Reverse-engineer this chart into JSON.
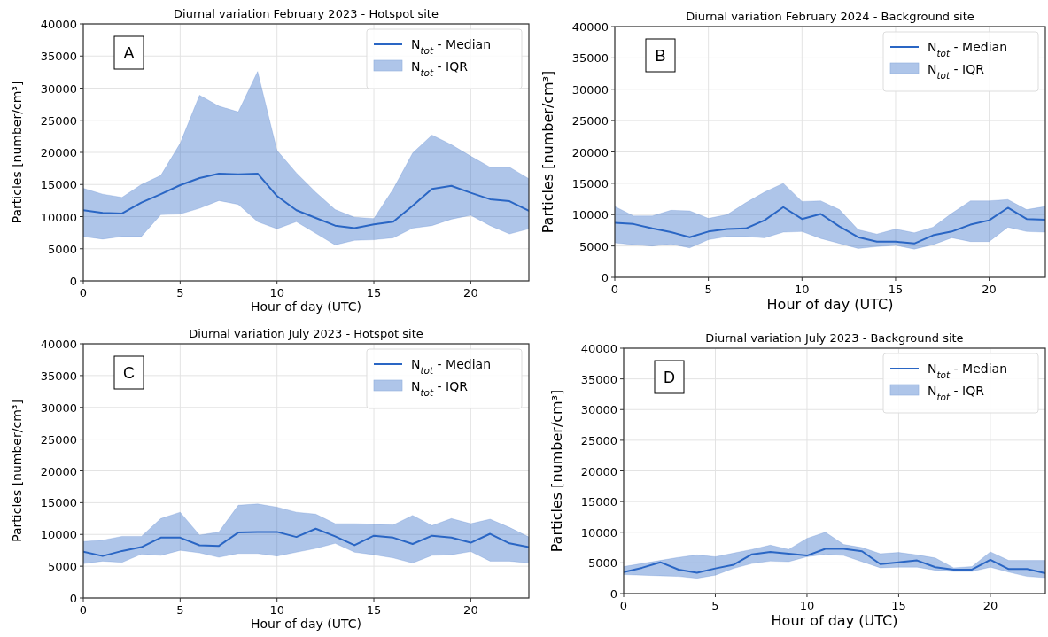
{
  "chart_data": [
    {
      "type": "line",
      "title": "Diurnal variation February 2023 - Hotspot site",
      "xlabel": "Hour of day (UTC)",
      "ylabel": "Particles [number/cm³]",
      "annotations": [
        "A",
        "N$_{tot}$ - IQR"
      ],
      "x": [
        0,
        1,
        2,
        3,
        4,
        5,
        6,
        7,
        8,
        9,
        10,
        11,
        12,
        13,
        14,
        15,
        16,
        17,
        18,
        19,
        20,
        21,
        22,
        23
      ],
      "xlim": [
        0,
        23
      ],
      "xticks": [
        0,
        5,
        10,
        15,
        20
      ],
      "ylim": [
        0,
        40000
      ],
      "yticks": [
        0,
        5000,
        10000,
        15000,
        20000,
        25000,
        30000,
        35000,
        40000
      ],
      "grid": true,
      "legend": "top right",
      "series": [
        {
          "name": "N$_{tot}$ - Median",
          "color": "#2a66c4",
          "values": [
            11000,
            10600,
            10500,
            12200,
            13500,
            14900,
            16000,
            16700,
            16600,
            16700,
            13200,
            11000,
            9800,
            8600,
            8200,
            8800,
            9200,
            11700,
            14300,
            14800,
            13700,
            12700,
            12400,
            10900
          ],
          "lower": [
            6900,
            6500,
            6900,
            6900,
            10300,
            10400,
            11300,
            12500,
            11900,
            9200,
            8100,
            9200,
            7400,
            5600,
            6300,
            6400,
            6700,
            8200,
            8600,
            9600,
            10200,
            8600,
            7300,
            8100
          ],
          "upper": [
            14400,
            13500,
            13000,
            15000,
            16400,
            21400,
            28900,
            27200,
            26300,
            32600,
            20300,
            16800,
            13800,
            11100,
            9900,
            9700,
            14300,
            19900,
            22700,
            21200,
            19400,
            17700,
            17700,
            15900
          ]
        }
      ]
    },
    {
      "type": "line",
      "title": "Diurnal variation February 2024 - Background site",
      "xlabel": "Hour of day (UTC)",
      "ylabel": "Particles [number/cm³]",
      "annotations": [
        "B",
        "N$_{tot}$ - IQR"
      ],
      "x": [
        0,
        1,
        2,
        3,
        4,
        5,
        6,
        7,
        8,
        9,
        10,
        11,
        12,
        13,
        14,
        15,
        16,
        17,
        18,
        19,
        20,
        21,
        22,
        23
      ],
      "xlim": [
        0,
        23
      ],
      "xticks": [
        0,
        5,
        10,
        15,
        20
      ],
      "ylim": [
        0,
        40000
      ],
      "yticks": [
        0,
        5000,
        10000,
        15000,
        20000,
        25000,
        30000,
        35000,
        40000
      ],
      "grid": true,
      "legend": "top right",
      "series": [
        {
          "name": "N$_{tot}$ - Median",
          "color": "#2a66c4",
          "values": [
            8700,
            8500,
            7800,
            7200,
            6400,
            7300,
            7700,
            7800,
            9100,
            11200,
            9300,
            10100,
            8100,
            6400,
            5700,
            5700,
            5400,
            6700,
            7300,
            8400,
            9100,
            11100,
            9300,
            9200
          ],
          "lower": [
            5500,
            5200,
            5000,
            5300,
            4700,
            6000,
            6500,
            6500,
            6300,
            7200,
            7300,
            6200,
            5400,
            4600,
            4900,
            5100,
            4500,
            5200,
            6300,
            5700,
            5700,
            8000,
            7300,
            7200
          ],
          "upper": [
            11300,
            9800,
            9800,
            10700,
            10600,
            9400,
            10000,
            11900,
            13600,
            15000,
            12100,
            12200,
            10800,
            7600,
            6900,
            7700,
            7100,
            8000,
            10200,
            12200,
            12200,
            12400,
            10800,
            11300
          ]
        }
      ]
    },
    {
      "type": "line",
      "title": "Diurnal variation July 2023 - Hotspot site",
      "xlabel": "Hour of day (UTC)",
      "ylabel": "Particles [number/cm³]",
      "annotations": [
        "C",
        "N$_{tot}$ - IQR"
      ],
      "x": [
        0,
        1,
        2,
        3,
        4,
        5,
        6,
        7,
        8,
        9,
        10,
        11,
        12,
        13,
        14,
        15,
        16,
        17,
        18,
        19,
        20,
        21,
        22,
        23
      ],
      "xlim": [
        0,
        23
      ],
      "xticks": [
        0,
        5,
        10,
        15,
        20
      ],
      "ylim": [
        0,
        40000
      ],
      "yticks": [
        0,
        5000,
        10000,
        15000,
        20000,
        25000,
        30000,
        35000,
        40000
      ],
      "grid": true,
      "legend": "top right",
      "series": [
        {
          "name": "N$_{tot}$ - Median",
          "color": "#2a66c4",
          "values": [
            7300,
            6600,
            7400,
            8000,
            9500,
            9500,
            8300,
            8200,
            10300,
            10400,
            10400,
            9600,
            10900,
            9700,
            8300,
            9800,
            9500,
            8500,
            9800,
            9500,
            8700,
            10100,
            8600,
            8000
          ],
          "lower": [
            5400,
            5800,
            5600,
            6900,
            6700,
            7500,
            7100,
            6400,
            7000,
            7000,
            6600,
            7200,
            7800,
            8600,
            7200,
            6800,
            6300,
            5500,
            6700,
            6800,
            7300,
            5800,
            5800,
            5500
          ],
          "upper": [
            8900,
            9100,
            9700,
            9700,
            12500,
            13500,
            9900,
            10400,
            14600,
            14800,
            14300,
            13500,
            13200,
            11700,
            11700,
            11600,
            11500,
            13000,
            11400,
            12500,
            11700,
            12400,
            11100,
            9600
          ]
        }
      ]
    },
    {
      "type": "line",
      "title": "Diurnal variation July 2023 - Background site",
      "xlabel": "Hour of day (UTC)",
      "ylabel": "Particles [number/cm³]",
      "annotations": [
        "D",
        "N$_{tot}$ - IQR"
      ],
      "x": [
        0,
        1,
        2,
        3,
        4,
        5,
        6,
        7,
        8,
        9,
        10,
        11,
        12,
        13,
        14,
        15,
        16,
        17,
        18,
        19,
        20,
        21,
        22,
        23
      ],
      "xlim": [
        0,
        23
      ],
      "xticks": [
        0,
        5,
        10,
        15,
        20
      ],
      "ylim": [
        0,
        40000
      ],
      "yticks": [
        0,
        5000,
        10000,
        15000,
        20000,
        25000,
        30000,
        35000,
        40000
      ],
      "grid": true,
      "legend": "top right",
      "series": [
        {
          "name": "N$_{tot}$ - Median",
          "color": "#2a66c4",
          "values": [
            3500,
            4200,
            5100,
            3900,
            3400,
            4100,
            4700,
            6400,
            6800,
            6500,
            6200,
            7300,
            7300,
            6900,
            4800,
            5100,
            5400,
            4300,
            3900,
            3900,
            5500,
            4000,
            4000,
            3300
          ],
          "lower": [
            3100,
            3000,
            2900,
            2800,
            2500,
            3000,
            4100,
            4900,
            5300,
            5200,
            6000,
            6400,
            6200,
            5200,
            4200,
            4300,
            4300,
            3800,
            3600,
            3600,
            4300,
            3500,
            2800,
            2600
          ],
          "upper": [
            4400,
            4900,
            5400,
            5900,
            6300,
            6000,
            6600,
            7200,
            7900,
            7200,
            9000,
            10000,
            8000,
            7500,
            6500,
            6700,
            6300,
            5800,
            4200,
            4400,
            6800,
            5400,
            5400,
            5400
          ]
        }
      ]
    }
  ]
}
